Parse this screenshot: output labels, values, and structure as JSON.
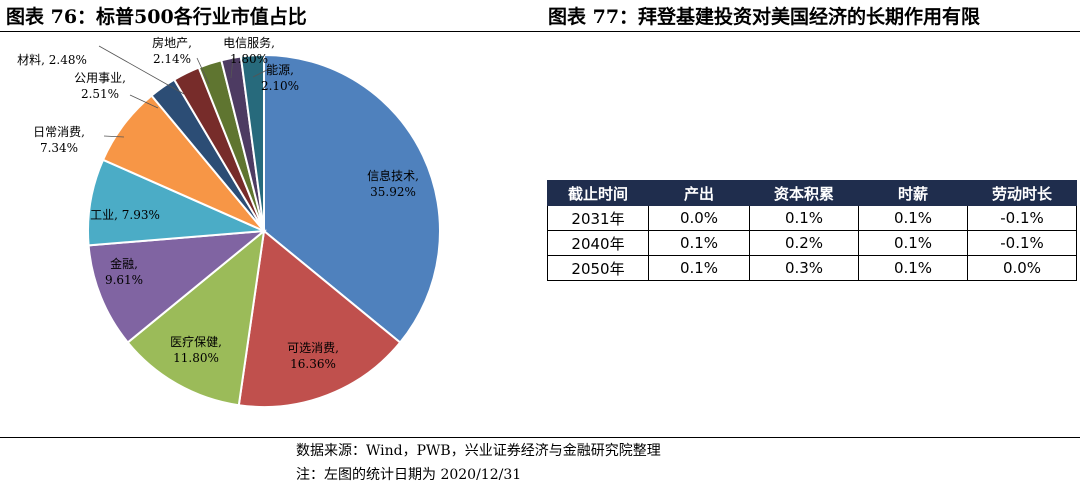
{
  "left_title": "图表 76：标普500各行业市值占比",
  "right_title": "图表 77：拜登基建投资对美国经济的长期作用有限",
  "chart_data": {
    "type": "pie",
    "title": "",
    "slices": [
      {
        "label": "信息技术,",
        "pct_text": "35.92%",
        "value": 35.92,
        "color": "#4f81bd"
      },
      {
        "label": "可选消费,",
        "pct_text": "16.36%",
        "value": 16.36,
        "color": "#c0504d"
      },
      {
        "label": "医疗保健,",
        "pct_text": "11.80%",
        "value": 11.8,
        "color": "#9bbb59"
      },
      {
        "label": "金融,",
        "pct_text": "9.61%",
        "value": 9.61,
        "color": "#8064a2"
      },
      {
        "label": "工业,",
        "pct_text": "7.93%",
        "value": 7.93,
        "color": "#4bacc6"
      },
      {
        "label": "日常消费,",
        "pct_text": "7.34%",
        "value": 7.34,
        "color": "#f79646"
      },
      {
        "label": "公用事业,",
        "pct_text": "2.51%",
        "value": 2.51,
        "color": "#2c4d75"
      },
      {
        "label": "材料,",
        "pct_text": "2.48%",
        "value": 2.48,
        "color": "#772c2a"
      },
      {
        "label": "房地产,",
        "pct_text": "2.14%",
        "value": 2.14,
        "color": "#5f7530"
      },
      {
        "label": "电信服务,",
        "pct_text": "1.80%",
        "value": 1.8,
        "color": "#4d3b62"
      },
      {
        "label": "能源,",
        "pct_text": "2.10%",
        "value": 2.1,
        "color": "#276a7c"
      }
    ]
  },
  "table": {
    "headers": [
      "截止时间",
      "产出",
      "资本积累",
      "时薪",
      "劳动时长"
    ],
    "rows": [
      [
        "2031年",
        "0.0%",
        "0.1%",
        "0.1%",
        "-0.1%"
      ],
      [
        "2040年",
        "0.1%",
        "0.2%",
        "0.1%",
        "-0.1%"
      ],
      [
        "2050年",
        "0.1%",
        "0.3%",
        "0.1%",
        "0.0%"
      ]
    ]
  },
  "source_note": "数据来源：Wind，PWB，兴业证券经济与金融研究院整理",
  "footnote": "注：左图的统计日期为 2020/12/31"
}
